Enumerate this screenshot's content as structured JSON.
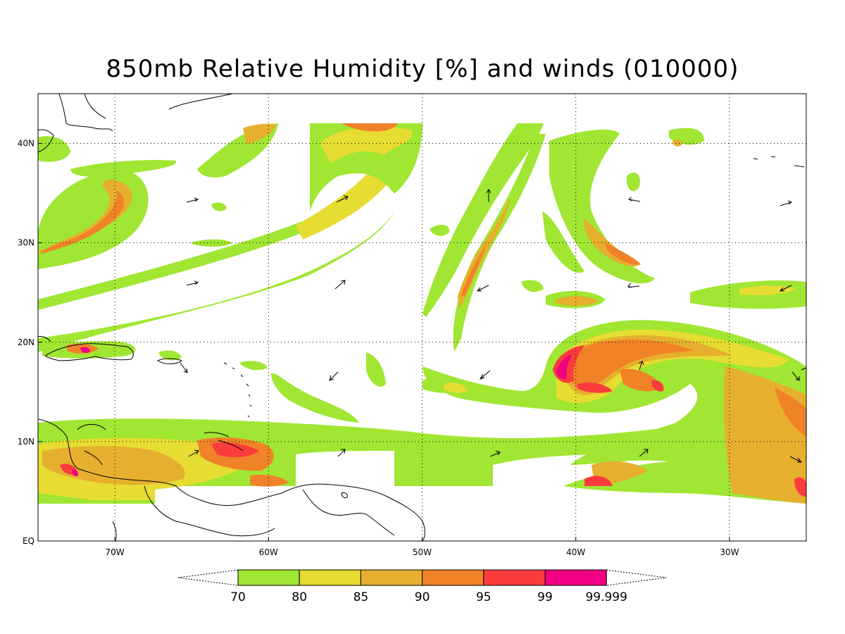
{
  "title": "850mb Relative Humidity [%] and winds (010000)",
  "map": {
    "lon_range": [
      -75,
      -25
    ],
    "lat_range": [
      0,
      45
    ],
    "lon_ticks": [
      {
        "lon": -70,
        "label": "70W"
      },
      {
        "lon": -60,
        "label": "60W"
      },
      {
        "lon": -50,
        "label": "50W"
      },
      {
        "lon": -40,
        "label": "40W"
      },
      {
        "lon": -30,
        "label": "30W"
      }
    ],
    "lat_ticks": [
      {
        "lat": 0,
        "label": "EQ"
      },
      {
        "lat": 10,
        "label": "10N"
      },
      {
        "lat": 20,
        "label": "20N"
      },
      {
        "lat": 30,
        "label": "30N"
      },
      {
        "lat": 40,
        "label": "40N"
      }
    ],
    "grid": "dotted"
  },
  "legend": {
    "colors": [
      "#a0e632",
      "#e6dc32",
      "#e6af2d",
      "#f08228",
      "#fa3c3c",
      "#f00082"
    ],
    "labels": [
      "70",
      "80",
      "85",
      "90",
      "95",
      "99",
      "99.999"
    ]
  }
}
